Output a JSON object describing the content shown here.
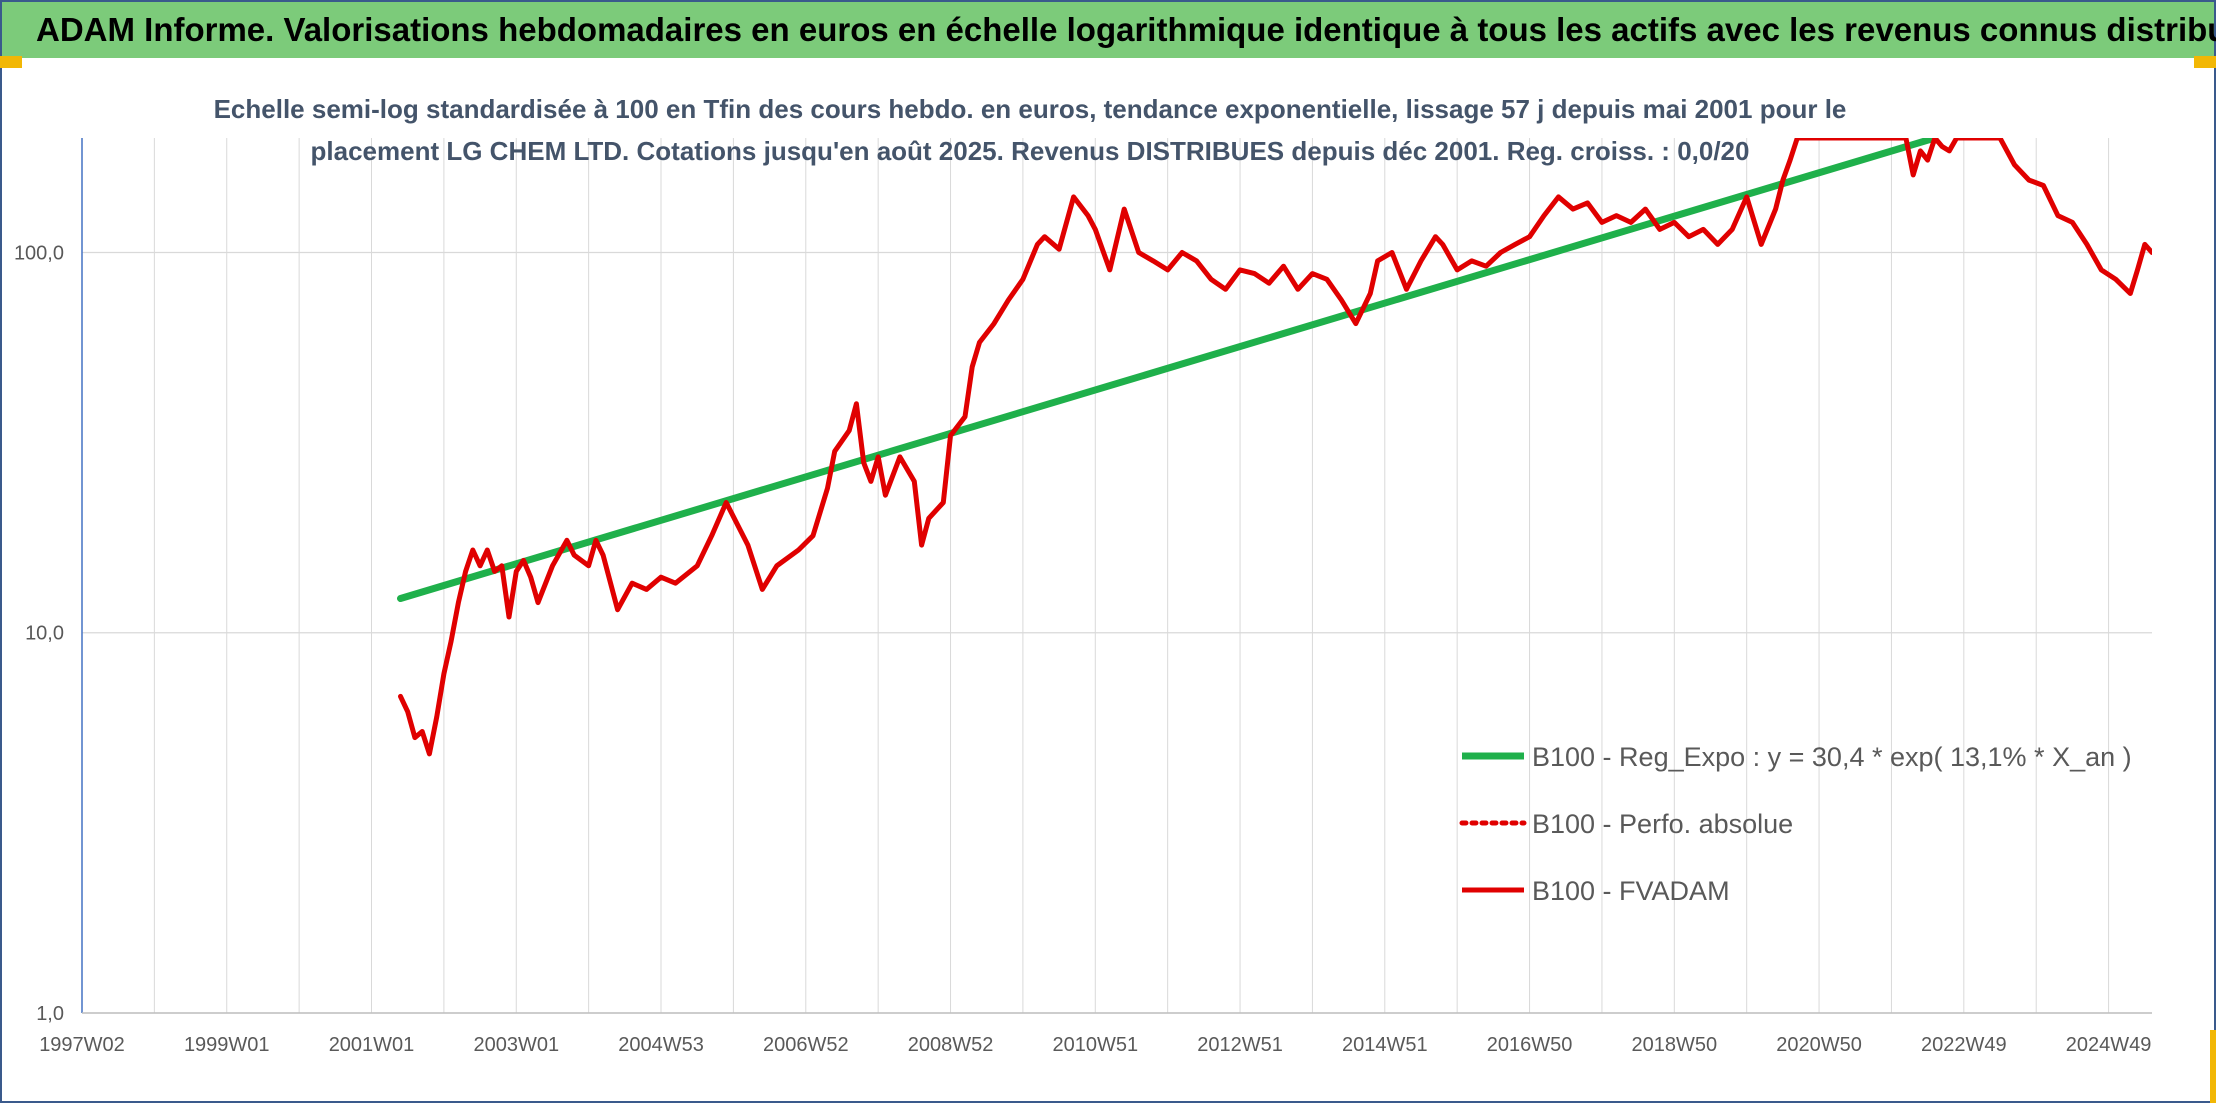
{
  "banner": {
    "title": "ADAM Informe. Valorisations hebdomadaires en euros en échelle logarithmique identique à tous les actifs avec les revenus connus distribués"
  },
  "chart_data": {
    "type": "line",
    "title_lines": [
      "Echelle semi-log standardisée à 100 en Tfin des cours hebdo. en euros, tendance exponentielle, lissage 57 j depuis mai 2001 pour le",
      "placement LG CHEM LTD. Cotations jusqu'en août 2025. Revenus DISTRIBUES depuis déc 2001. Reg. croiss. : 0,0/20"
    ],
    "xlabel": "",
    "ylabel": "",
    "y_scale": "log",
    "ylim": [
      1,
      200
    ],
    "xlim": [
      1997.0,
      2025.6
    ],
    "grid": true,
    "y_ticks": [
      {
        "value": 1,
        "label": "1,0"
      },
      {
        "value": 10,
        "label": "10,0"
      },
      {
        "value": 100,
        "label": "100,0"
      }
    ],
    "x_ticks": [
      {
        "value": 1997.0,
        "label": "1997W02"
      },
      {
        "value": 1999.0,
        "label": "1999W01"
      },
      {
        "value": 2001.0,
        "label": "2001W01"
      },
      {
        "value": 2003.0,
        "label": "2003W01"
      },
      {
        "value": 2005.0,
        "label": "2004W53"
      },
      {
        "value": 2007.0,
        "label": "2006W52"
      },
      {
        "value": 2009.0,
        "label": "2008W52"
      },
      {
        "value": 2011.0,
        "label": "2010W51"
      },
      {
        "value": 2013.0,
        "label": "2012W51"
      },
      {
        "value": 2015.0,
        "label": "2014W51"
      },
      {
        "value": 2017.0,
        "label": "2016W50"
      },
      {
        "value": 2019.0,
        "label": "2018W50"
      },
      {
        "value": 2021.0,
        "label": "2020W50"
      },
      {
        "value": 2023.0,
        "label": "2022W49"
      },
      {
        "value": 2025.0,
        "label": "2024W49"
      }
    ],
    "legend_position": "bottom-right",
    "series": [
      {
        "name": "B100 - Reg_Expo : y = 30,4 * exp( 13,1% *  X_an )",
        "color": "#1fb04b",
        "style": "solid",
        "x": [
          2001.4,
          2022.6
        ],
        "y": [
          12.3,
          200
        ]
      },
      {
        "name": "B100 - Perfo. absolue",
        "color": "#e00000",
        "style": "dotted",
        "x": [],
        "y": []
      },
      {
        "name": "B100 - FVADAM",
        "color": "#e00000",
        "style": "solid",
        "x": [
          2001.4,
          2001.5,
          2001.6,
          2001.7,
          2001.8,
          2001.9,
          2002.0,
          2002.1,
          2002.2,
          2002.3,
          2002.4,
          2002.5,
          2002.6,
          2002.7,
          2002.8,
          2002.9,
          2003.0,
          2003.1,
          2003.2,
          2003.3,
          2003.5,
          2003.7,
          2003.8,
          2004.0,
          2004.1,
          2004.2,
          2004.4,
          2004.6,
          2004.8,
          2005.0,
          2005.2,
          2005.5,
          2005.7,
          2005.9,
          2006.2,
          2006.4,
          2006.6,
          2006.9,
          2007.1,
          2007.3,
          2007.4,
          2007.6,
          2007.7,
          2007.8,
          2007.9,
          2008.0,
          2008.1,
          2008.3,
          2008.5,
          2008.6,
          2008.7,
          2008.9,
          2009.0,
          2009.2,
          2009.3,
          2009.4,
          2009.6,
          2009.8,
          2010.0,
          2010.2,
          2010.3,
          2010.5,
          2010.7,
          2010.9,
          2011.0,
          2011.2,
          2011.4,
          2011.6,
          2011.8,
          2012.0,
          2012.2,
          2012.4,
          2012.6,
          2012.8,
          2013.0,
          2013.2,
          2013.4,
          2013.6,
          2013.8,
          2014.0,
          2014.2,
          2014.4,
          2014.6,
          2014.8,
          2014.9,
          2015.1,
          2015.3,
          2015.5,
          2015.7,
          2015.8,
          2016.0,
          2016.2,
          2016.4,
          2016.6,
          2016.8,
          2017.0,
          2017.2,
          2017.4,
          2017.6,
          2017.8,
          2018.0,
          2018.2,
          2018.4,
          2018.6,
          2018.8,
          2019.0,
          2019.2,
          2019.4,
          2019.6,
          2019.8,
          2020.0,
          2020.2,
          2020.4,
          2020.5,
          2020.6,
          2020.7,
          2022.2,
          2022.3,
          2022.4,
          2022.5,
          2022.6,
          2022.7,
          2022.8,
          2022.9,
          2023.0,
          2023.5,
          2023.7,
          2023.9,
          2024.1,
          2024.3,
          2024.5,
          2024.7,
          2024.9,
          2025.1,
          2025.3,
          2025.4,
          2025.5,
          2025.6
        ],
        "y": [
          6.8,
          6.2,
          5.3,
          5.5,
          4.8,
          6.0,
          7.8,
          9.5,
          12.0,
          14.5,
          16.5,
          15.0,
          16.5,
          14.5,
          15.0,
          11.0,
          14.5,
          15.5,
          14.0,
          12.0,
          15.0,
          17.5,
          16.0,
          15.0,
          17.5,
          16.0,
          11.5,
          13.5,
          13.0,
          14.0,
          13.5,
          15.0,
          18.0,
          22.0,
          17.0,
          13.0,
          15.0,
          16.5,
          18.0,
          24.0,
          30.0,
          34.0,
          40.0,
          28.0,
          25.0,
          29.0,
          23.0,
          29.0,
          25.0,
          17.0,
          20.0,
          22.0,
          33.0,
          37.0,
          50.0,
          58.0,
          65.0,
          75.0,
          85.0,
          105.0,
          110.0,
          102.0,
          140.0,
          125.0,
          115.0,
          90.0,
          130.0,
          100.0,
          95.0,
          90.0,
          100.0,
          95.0,
          85.0,
          80.0,
          90.0,
          88.0,
          83.0,
          92.0,
          80.0,
          88.0,
          85.0,
          75.0,
          65.0,
          78.0,
          95.0,
          100.0,
          80.0,
          95.0,
          110.0,
          105.0,
          90.0,
          95.0,
          92.0,
          100.0,
          105.0,
          110.0,
          125.0,
          140.0,
          130.0,
          135.0,
          120.0,
          125.0,
          120.0,
          130.0,
          115.0,
          120.0,
          110.0,
          115.0,
          105.0,
          115.0,
          140.0,
          105.0,
          130.0,
          155.0,
          175.0,
          200.0,
          200.0,
          160.0,
          185.0,
          175.0,
          200.0,
          190.0,
          185.0,
          200.0,
          200.0,
          200.0,
          170.0,
          155.0,
          150.0,
          125.0,
          120.0,
          105.0,
          90.0,
          85.0,
          78.0,
          90.0,
          105.0,
          100.0
        ]
      }
    ]
  }
}
